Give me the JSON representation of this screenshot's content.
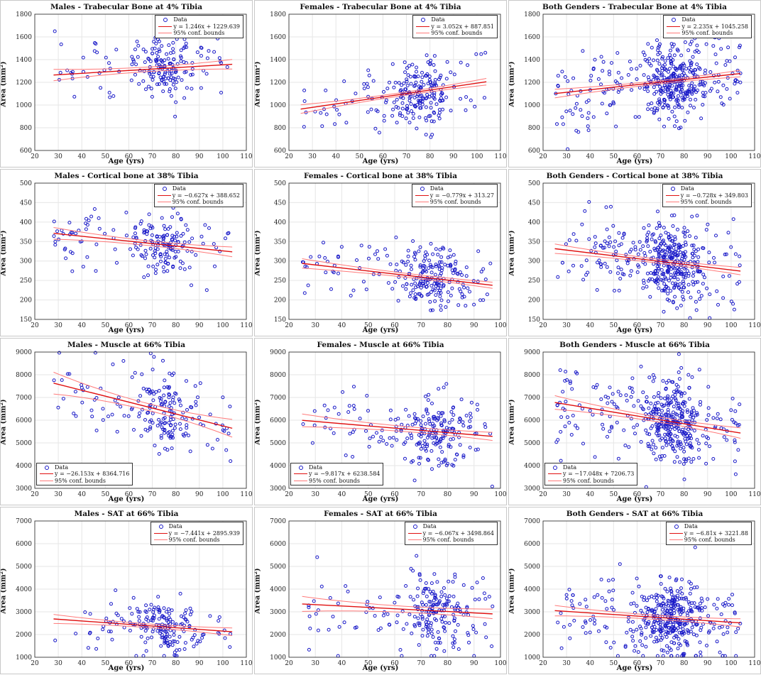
{
  "figure": {
    "xlabel": "Age (yrs)",
    "ylabel": "Area (mm²)",
    "legend": {
      "data": "Data",
      "bounds": "95% conf. bounds"
    },
    "colors": {
      "points": "#1a1ac8",
      "fit": "#e01010",
      "bounds": "#ff7a7a",
      "grid": "#e6e6e6"
    }
  },
  "chart_data": [
    {
      "type": "scatter",
      "title": "Males - Trabecular Bone at 4% Tibia",
      "xlim": [
        20,
        110
      ],
      "ylim": [
        600,
        1800
      ],
      "xticks": [
        20,
        30,
        40,
        50,
        60,
        70,
        80,
        90,
        100,
        110
      ],
      "yticks": [
        600,
        800,
        1000,
        1200,
        1400,
        1600,
        1800
      ],
      "fit": {
        "slope": 1.246,
        "intercept": 1229.639
      },
      "equation": "y = 1.246x + 1229.639",
      "ci_half": [
        50,
        20
      ],
      "legend_position": "top-right",
      "points": {
        "n": 190,
        "x_range": [
          28,
          104
        ],
        "center_x": 75,
        "center_y": 1325,
        "spread_y": 150,
        "seed": 1
      }
    },
    {
      "type": "scatter",
      "title": "Females - Trabecular Bone at 4% Tibia",
      "xlim": [
        20,
        110
      ],
      "ylim": [
        600,
        1800
      ],
      "xticks": [
        20,
        30,
        40,
        50,
        60,
        70,
        80,
        90,
        100,
        110
      ],
      "yticks": [
        600,
        800,
        1000,
        1200,
        1400,
        1600,
        1800
      ],
      "fit": {
        "slope": 3.052,
        "intercept": 887.851
      },
      "equation": "y = 3.052x + 887.851",
      "ci_half": [
        38,
        14
      ],
      "legend_position": "top-right",
      "points": {
        "n": 230,
        "x_range": [
          25,
          104
        ],
        "center_x": 75,
        "center_y": 1110,
        "spread_y": 140,
        "seed": 2
      }
    },
    {
      "type": "scatter",
      "title": "Both Genders - Trabecular Bone at 4% Tibia",
      "xlim": [
        20,
        110
      ],
      "ylim": [
        600,
        1800
      ],
      "xticks": [
        20,
        30,
        40,
        50,
        60,
        70,
        80,
        90,
        100,
        110
      ],
      "yticks": [
        600,
        800,
        1000,
        1200,
        1400,
        1600,
        1800
      ],
      "fit": {
        "slope": 2.235,
        "intercept": 1045.258
      },
      "equation": "y = 2.235x + 1045.258",
      "ci_half": [
        38,
        14
      ],
      "legend_position": "top-right",
      "points": {
        "n": 420,
        "x_range": [
          25,
          104
        ],
        "center_x": 75,
        "center_y": 1210,
        "spread_y": 175,
        "seed": 3
      }
    },
    {
      "type": "scatter",
      "title": "Males - Cortical bone at 38% Tibia",
      "xlim": [
        20,
        110
      ],
      "ylim": [
        150,
        500
      ],
      "xticks": [
        20,
        30,
        40,
        50,
        60,
        70,
        80,
        90,
        100,
        110
      ],
      "yticks": [
        150,
        200,
        250,
        300,
        350,
        400,
        450,
        500
      ],
      "fit": {
        "slope": -0.627,
        "intercept": 388.652
      },
      "equation": "y = −0.627x + 388.652",
      "ci_half": [
        15,
        6
      ],
      "legend_position": "top-right",
      "points": {
        "n": 190,
        "x_range": [
          28,
          104
        ],
        "center_x": 75,
        "center_y": 340,
        "spread_y": 38,
        "seed": 4
      }
    },
    {
      "type": "scatter",
      "title": "Females - Cortical bone at 38% Tibia",
      "xlim": [
        20,
        100
      ],
      "ylim": [
        150,
        500
      ],
      "xticks": [
        20,
        30,
        40,
        50,
        60,
        70,
        80,
        90,
        100
      ],
      "yticks": [
        150,
        200,
        250,
        300,
        350,
        400,
        450,
        500
      ],
      "fit": {
        "slope": -0.779,
        "intercept": 313.27
      },
      "equation": "y = −0.779x + 313.27",
      "ci_half": [
        12,
        5
      ],
      "legend_position": "top-right",
      "points": {
        "n": 230,
        "x_range": [
          25,
          97
        ],
        "center_x": 75,
        "center_y": 255,
        "spread_y": 38,
        "seed": 5
      }
    },
    {
      "type": "scatter",
      "title": "Both Genders - Cortical bone at 38% Tibia",
      "xlim": [
        20,
        110
      ],
      "ylim": [
        150,
        500
      ],
      "xticks": [
        20,
        30,
        40,
        50,
        60,
        70,
        80,
        90,
        100,
        110
      ],
      "yticks": [
        150,
        200,
        250,
        300,
        350,
        400,
        450,
        500
      ],
      "fit": {
        "slope": -0.728,
        "intercept": 349.803
      },
      "equation": "y = −0.728x + 349.803",
      "ci_half": [
        12,
        5
      ],
      "legend_position": "top-right",
      "points": {
        "n": 420,
        "x_range": [
          25,
          104
        ],
        "center_x": 75,
        "center_y": 295,
        "spread_y": 52,
        "seed": 6
      }
    },
    {
      "type": "scatter",
      "title": "Males - Muscle at 66% Tibia",
      "xlim": [
        20,
        110
      ],
      "ylim": [
        3000,
        9000
      ],
      "xticks": [
        20,
        30,
        40,
        50,
        60,
        70,
        80,
        90,
        100,
        110
      ],
      "yticks": [
        3000,
        4000,
        5000,
        6000,
        7000,
        8000,
        9000
      ],
      "fit": {
        "slope": -26.153,
        "intercept": 8364.716
      },
      "equation": "y = −26.153x + 8364.716",
      "ci_half": [
        480,
        150
      ],
      "legend_position": "bottom-left",
      "points": {
        "n": 190,
        "x_range": [
          28,
          104
        ],
        "center_x": 75,
        "center_y": 6400,
        "spread_y": 850,
        "seed": 7
      }
    },
    {
      "type": "scatter",
      "title": "Females - Muscle at 66% Tibia",
      "xlim": [
        20,
        100
      ],
      "ylim": [
        3000,
        9000
      ],
      "xticks": [
        20,
        30,
        40,
        50,
        60,
        70,
        80,
        90,
        100
      ],
      "yticks": [
        3000,
        4000,
        5000,
        6000,
        7000,
        8000,
        9000
      ],
      "fit": {
        "slope": -9.817,
        "intercept": 6238.584
      },
      "equation": "y = −9.817x + 6238.584",
      "ci_half": [
        280,
        110
      ],
      "legend_position": "bottom-left",
      "points": {
        "n": 230,
        "x_range": [
          25,
          97
        ],
        "center_x": 75,
        "center_y": 5500,
        "spread_y": 750,
        "seed": 8
      }
    },
    {
      "type": "scatter",
      "title": "Both Genders - Muscle at 66% Tibia",
      "xlim": [
        20,
        110
      ],
      "ylim": [
        3000,
        9000
      ],
      "xticks": [
        20,
        30,
        40,
        50,
        60,
        70,
        80,
        90,
        100,
        110
      ],
      "yticks": [
        3000,
        4000,
        5000,
        6000,
        7000,
        8000,
        9000
      ],
      "fit": {
        "slope": -17.048,
        "intercept": 7206.73
      },
      "equation": "y = −17.048x + 7206.73",
      "ci_half": [
        300,
        110
      ],
      "legend_position": "bottom-left",
      "points": {
        "n": 420,
        "x_range": [
          25,
          104
        ],
        "center_x": 75,
        "center_y": 5950,
        "spread_y": 950,
        "seed": 9
      }
    },
    {
      "type": "scatter",
      "title": "Males - SAT at 66% Tibia",
      "xlim": [
        20,
        110
      ],
      "ylim": [
        1000,
        7000
      ],
      "xticks": [
        20,
        30,
        40,
        50,
        60,
        70,
        80,
        90,
        100,
        110
      ],
      "yticks": [
        1000,
        2000,
        3000,
        4000,
        5000,
        6000,
        7000
      ],
      "fit": {
        "slope": -7.441,
        "intercept": 2895.939
      },
      "equation": "y = −7.441x + 2895.939",
      "ci_half": [
        200,
        80
      ],
      "legend_position": "top-right",
      "points": {
        "n": 190,
        "x_range": [
          28,
          104
        ],
        "center_x": 75,
        "center_y": 2350,
        "spread_y": 600,
        "seed": 10
      }
    },
    {
      "type": "scatter",
      "title": "Females - SAT at 66% Tibia",
      "xlim": [
        20,
        100
      ],
      "ylim": [
        1000,
        7000
      ],
      "xticks": [
        20,
        30,
        40,
        50,
        60,
        70,
        80,
        90,
        100
      ],
      "yticks": [
        1000,
        2000,
        3000,
        4000,
        5000,
        6000,
        7000
      ],
      "fit": {
        "slope": -6.067,
        "intercept": 3498.864
      },
      "equation": "y = −6.067x + 3498.864",
      "ci_half": [
        330,
        130
      ],
      "legend_position": "top-right",
      "points": {
        "n": 230,
        "x_range": [
          25,
          97
        ],
        "center_x": 75,
        "center_y": 3000,
        "spread_y": 900,
        "seed": 11
      }
    },
    {
      "type": "scatter",
      "title": "Both Genders - SAT at 66% Tibia",
      "xlim": [
        20,
        110
      ],
      "ylim": [
        1000,
        7000
      ],
      "xticks": [
        20,
        30,
        40,
        50,
        60,
        70,
        80,
        90,
        100,
        110
      ],
      "yticks": [
        1000,
        2000,
        3000,
        4000,
        5000,
        6000,
        7000
      ],
      "fit": {
        "slope": -6.81,
        "intercept": 3221.88
      },
      "equation": "y = −6.81x + 3221.88",
      "ci_half": [
        230,
        90
      ],
      "legend_position": "top-right",
      "points": {
        "n": 420,
        "x_range": [
          25,
          104
        ],
        "center_x": 75,
        "center_y": 2700,
        "spread_y": 850,
        "seed": 12
      }
    }
  ]
}
